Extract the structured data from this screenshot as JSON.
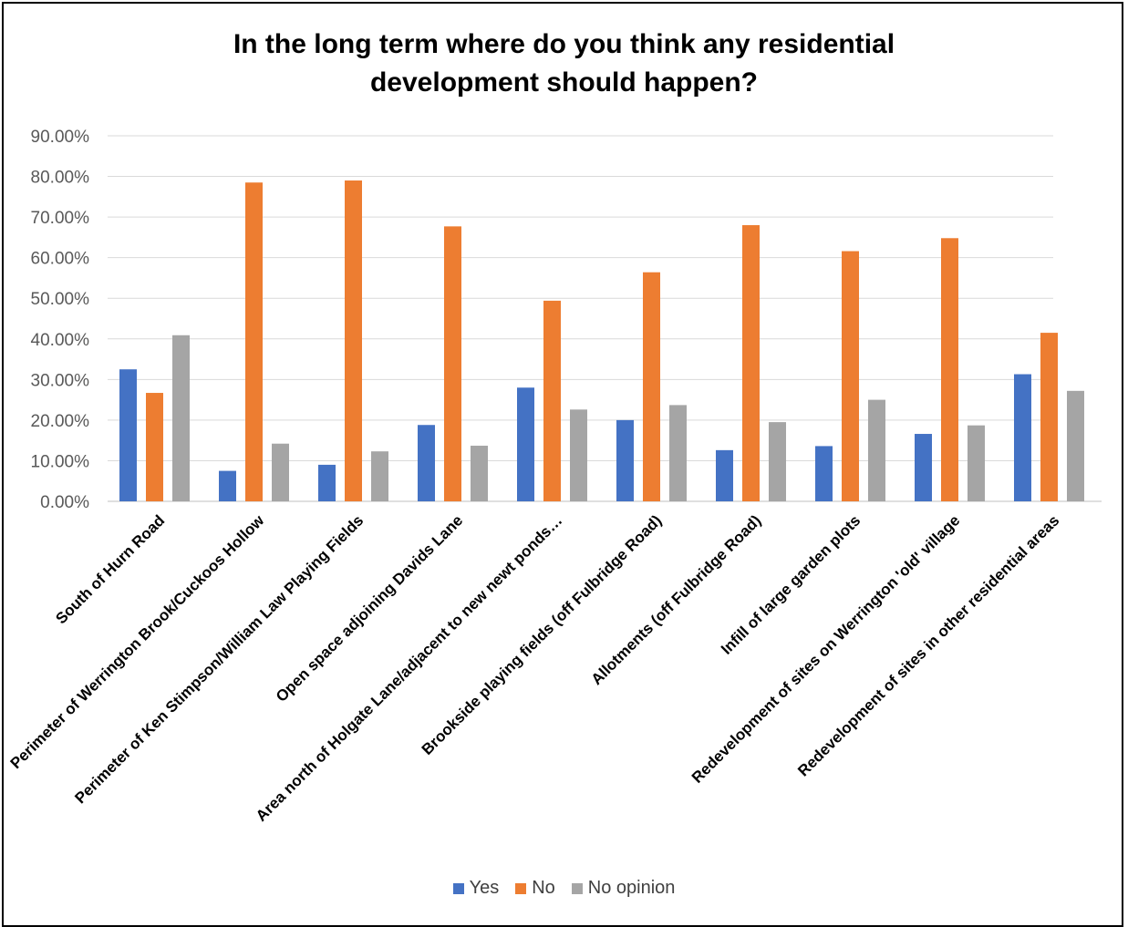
{
  "chart_data": {
    "type": "bar",
    "title_lines": [
      "In the long term where do you think any residential",
      "development should happen?"
    ],
    "categories": [
      "South of Hurn Road",
      "Perimeter of Werrington Brook/Cuckoos Hollow",
      "Perimeter of Ken Stimpson/William Law Playing Fields",
      "Open space adjoining Davids Lane",
      "Area north of Holgate Lane/adjacent to new newt ponds…",
      "Brookside playing fields (off Fulbridge Road)",
      "Allotments (off Fulbridge Road)",
      "Infill of large garden plots",
      "Redevelopment of sites on Werrington 'old' village",
      "Redevelopment of sites in other residential areas"
    ],
    "series": [
      {
        "name": "Yes",
        "color": "#4472C4",
        "values": [
          32.5,
          7.5,
          9.0,
          18.8,
          28.0,
          20.0,
          12.6,
          13.6,
          16.6,
          31.3
        ]
      },
      {
        "name": "No",
        "color": "#ED7D31",
        "values": [
          26.7,
          78.5,
          79.0,
          67.7,
          49.4,
          56.4,
          68.0,
          61.6,
          64.8,
          41.5
        ]
      },
      {
        "name": "No opinion",
        "color": "#A5A5A5",
        "values": [
          40.9,
          14.2,
          12.3,
          13.7,
          22.6,
          23.7,
          19.5,
          25.0,
          18.7,
          27.2
        ]
      }
    ],
    "yticks": [
      "0.00%",
      "10.00%",
      "20.00%",
      "30.00%",
      "40.00%",
      "50.00%",
      "60.00%",
      "70.00%",
      "80.00%",
      "90.00%"
    ],
    "ylim": [
      0,
      90
    ],
    "grid": true,
    "legend_position": "bottom"
  }
}
